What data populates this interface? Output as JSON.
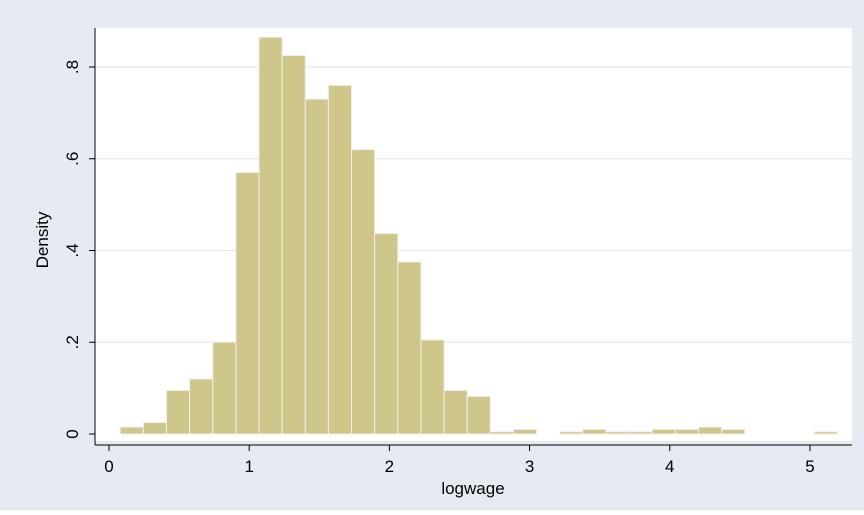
{
  "colors": {
    "outer_background": "#e6eaf2",
    "plot_background": "#ffffff",
    "bar_fill": "#cfc68a",
    "bar_stroke": "#eeeeee",
    "grid": "#e3e8ef",
    "axis": "#000000",
    "text": "#000000"
  },
  "chart_data": {
    "type": "bar",
    "xlabel": "logwage",
    "ylabel": "Density",
    "xlim": [
      -0.1,
      5.3
    ],
    "ylim": [
      0,
      0.88
    ],
    "xticks": [
      0,
      1,
      2,
      3,
      4,
      5
    ],
    "xtick_labels": [
      "0",
      "1",
      "2",
      "3",
      "4",
      "5"
    ],
    "yticks": [
      0,
      0.2,
      0.4,
      0.6,
      0.8
    ],
    "ytick_labels": [
      "0",
      ".2",
      ".4",
      ".6",
      ".8"
    ],
    "grid": "horizontal",
    "bins": [
      {
        "x0": 0.08,
        "x1": 0.245,
        "density": 0.015
      },
      {
        "x0": 0.245,
        "x1": 0.41,
        "density": 0.025
      },
      {
        "x0": 0.41,
        "x1": 0.575,
        "density": 0.095
      },
      {
        "x0": 0.575,
        "x1": 0.74,
        "density": 0.12
      },
      {
        "x0": 0.74,
        "x1": 0.905,
        "density": 0.2
      },
      {
        "x0": 0.905,
        "x1": 1.07,
        "density": 0.57
      },
      {
        "x0": 1.07,
        "x1": 1.235,
        "density": 0.865
      },
      {
        "x0": 1.235,
        "x1": 1.4,
        "density": 0.825
      },
      {
        "x0": 1.4,
        "x1": 1.565,
        "density": 0.73
      },
      {
        "x0": 1.565,
        "x1": 1.73,
        "density": 0.76
      },
      {
        "x0": 1.73,
        "x1": 1.895,
        "density": 0.62
      },
      {
        "x0": 1.895,
        "x1": 2.06,
        "density": 0.437
      },
      {
        "x0": 2.06,
        "x1": 2.225,
        "density": 0.375
      },
      {
        "x0": 2.225,
        "x1": 2.39,
        "density": 0.205
      },
      {
        "x0": 2.39,
        "x1": 2.555,
        "density": 0.095
      },
      {
        "x0": 2.555,
        "x1": 2.72,
        "density": 0.082
      },
      {
        "x0": 2.72,
        "x1": 2.885,
        "density": 0.005
      },
      {
        "x0": 2.885,
        "x1": 3.05,
        "density": 0.01
      },
      {
        "x0": 3.215,
        "x1": 3.38,
        "density": 0.005
      },
      {
        "x0": 3.38,
        "x1": 3.545,
        "density": 0.01
      },
      {
        "x0": 3.545,
        "x1": 3.71,
        "density": 0.005
      },
      {
        "x0": 3.71,
        "x1": 3.875,
        "density": 0.005
      },
      {
        "x0": 3.875,
        "x1": 4.04,
        "density": 0.01
      },
      {
        "x0": 4.04,
        "x1": 4.205,
        "density": 0.01
      },
      {
        "x0": 4.205,
        "x1": 4.37,
        "density": 0.015
      },
      {
        "x0": 4.37,
        "x1": 4.535,
        "density": 0.01
      },
      {
        "x0": 5.03,
        "x1": 5.195,
        "density": 0.005
      }
    ]
  }
}
